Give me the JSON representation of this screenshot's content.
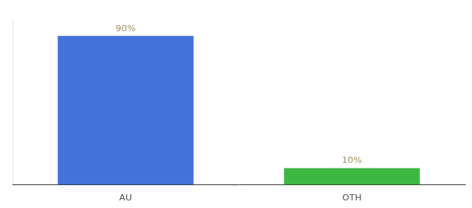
{
  "chart_data": {
    "type": "bar",
    "categories": [
      "AU",
      "OTH"
    ],
    "values": [
      90,
      10
    ],
    "colors": [
      "#4472db",
      "#3cb843"
    ],
    "value_labels": [
      "90%",
      "10%"
    ],
    "data_labels": true,
    "ylim": [
      0,
      100
    ],
    "tick_labels": "x",
    "grid": false
  }
}
